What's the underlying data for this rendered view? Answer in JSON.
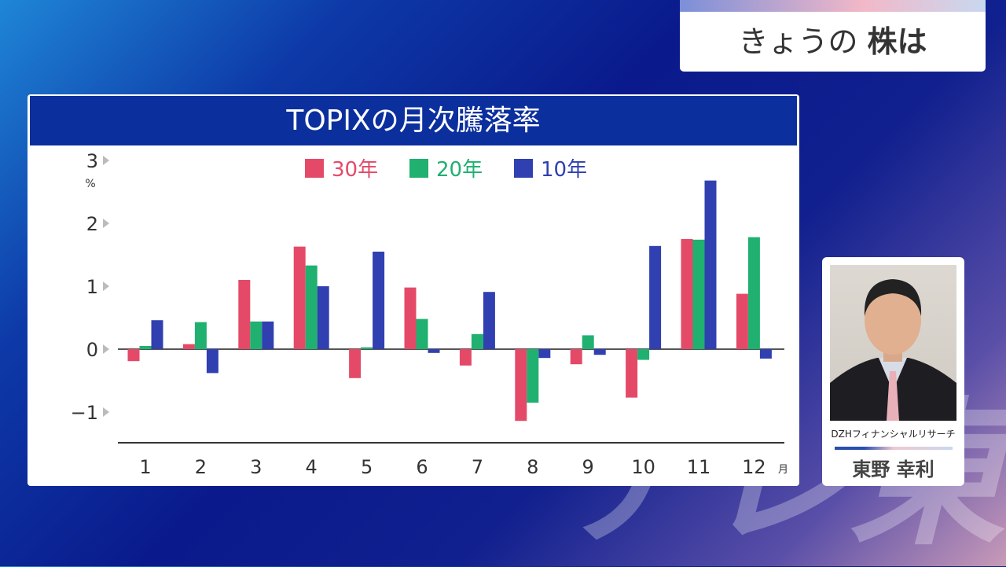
{
  "watermark": "テレ東",
  "top_card": {
    "prefix": "きょうの ",
    "bold": "株は"
  },
  "chart_data": {
    "type": "bar",
    "title": "TOPIXの月次騰落率",
    "ylabel": "%",
    "xlabel_unit": "月",
    "categories": [
      "1",
      "2",
      "3",
      "4",
      "5",
      "6",
      "7",
      "8",
      "9",
      "10",
      "11",
      "12"
    ],
    "yticks": [
      "3",
      "2",
      "1",
      "0",
      "−1"
    ],
    "ylim": [
      -1.5,
      3
    ],
    "legend_position": "top-center",
    "series": [
      {
        "name": "30年",
        "color": "#e44a68",
        "values": [
          -0.19,
          0.08,
          1.1,
          1.63,
          -0.46,
          0.98,
          -0.26,
          -1.14,
          -0.24,
          -0.77,
          1.75,
          0.88
        ]
      },
      {
        "name": "20年",
        "color": "#20b070",
        "values": [
          0.05,
          0.43,
          0.44,
          1.33,
          0.03,
          0.48,
          0.24,
          -0.85,
          0.22,
          -0.17,
          1.74,
          1.78
        ]
      },
      {
        "name": "10年",
        "color": "#3040b0",
        "values": [
          0.46,
          -0.38,
          0.44,
          1.0,
          1.55,
          -0.06,
          0.91,
          -0.14,
          -0.09,
          1.64,
          2.68,
          -0.15
        ]
      }
    ]
  },
  "person": {
    "org": "DZHフィナンシャルリサーチ",
    "name": "東野 幸利"
  }
}
